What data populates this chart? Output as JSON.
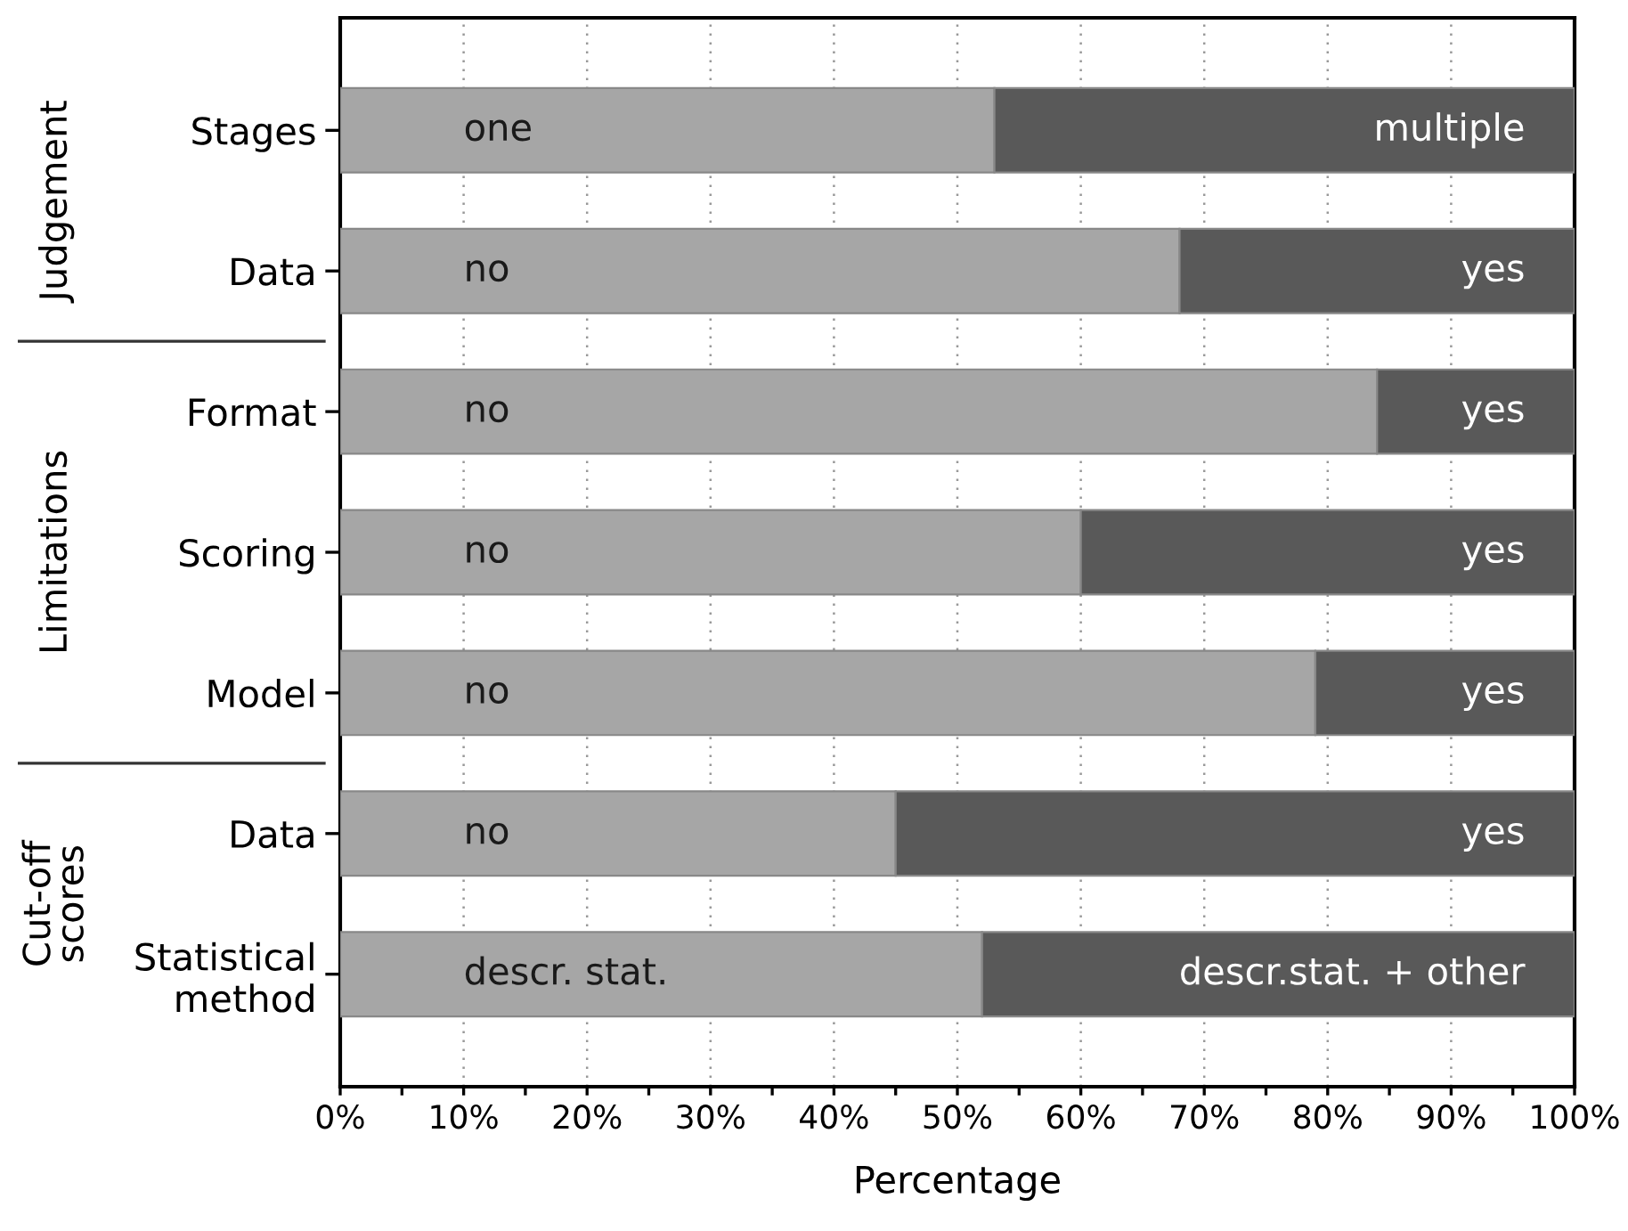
{
  "chart_data": {
    "type": "bar",
    "orientation": "horizontal",
    "stacked": true,
    "categories": [
      "Stages",
      "Data",
      "Format",
      "Scoring",
      "Model",
      "Data",
      "Statistical\nmethod"
    ],
    "series": [
      {
        "color": "#a6a6a6",
        "values": [
          53,
          68,
          84,
          60,
          79,
          45,
          52
        ],
        "value_labels": [
          "one",
          "no",
          "no",
          "no",
          "no",
          "no",
          "descr. stat."
        ]
      },
      {
        "color": "#595959",
        "values": [
          47,
          32,
          16,
          40,
          21,
          55,
          48
        ],
        "value_labels": [
          "multiple",
          "yes",
          "yes",
          "yes",
          "yes",
          "yes",
          "descr.stat. + other"
        ]
      }
    ],
    "xlabel": "Percentage",
    "xlim": [
      0,
      100
    ],
    "xticks": [
      {
        "value": 0,
        "label": "0%"
      },
      {
        "value": 5,
        "label": null
      },
      {
        "value": 10,
        "label": "10%"
      },
      {
        "value": 15,
        "label": null
      },
      {
        "value": 20,
        "label": "20%"
      },
      {
        "value": 25,
        "label": null
      },
      {
        "value": 30,
        "label": "30%"
      },
      {
        "value": 35,
        "label": null
      },
      {
        "value": 40,
        "label": "40%"
      },
      {
        "value": 45,
        "label": null
      },
      {
        "value": 50,
        "label": "50%"
      },
      {
        "value": 55,
        "label": null
      },
      {
        "value": 60,
        "label": "60%"
      },
      {
        "value": 65,
        "label": null
      },
      {
        "value": 70,
        "label": "70%"
      },
      {
        "value": 75,
        "label": null
      },
      {
        "value": 80,
        "label": "80%"
      },
      {
        "value": 85,
        "label": null
      },
      {
        "value": 90,
        "label": "90%"
      },
      {
        "value": 95,
        "label": null
      },
      {
        "value": 100,
        "label": "100%"
      }
    ],
    "grid": "x",
    "annotations": [
      "Judgement",
      "Limitations",
      "Cut-off\nscores"
    ]
  }
}
